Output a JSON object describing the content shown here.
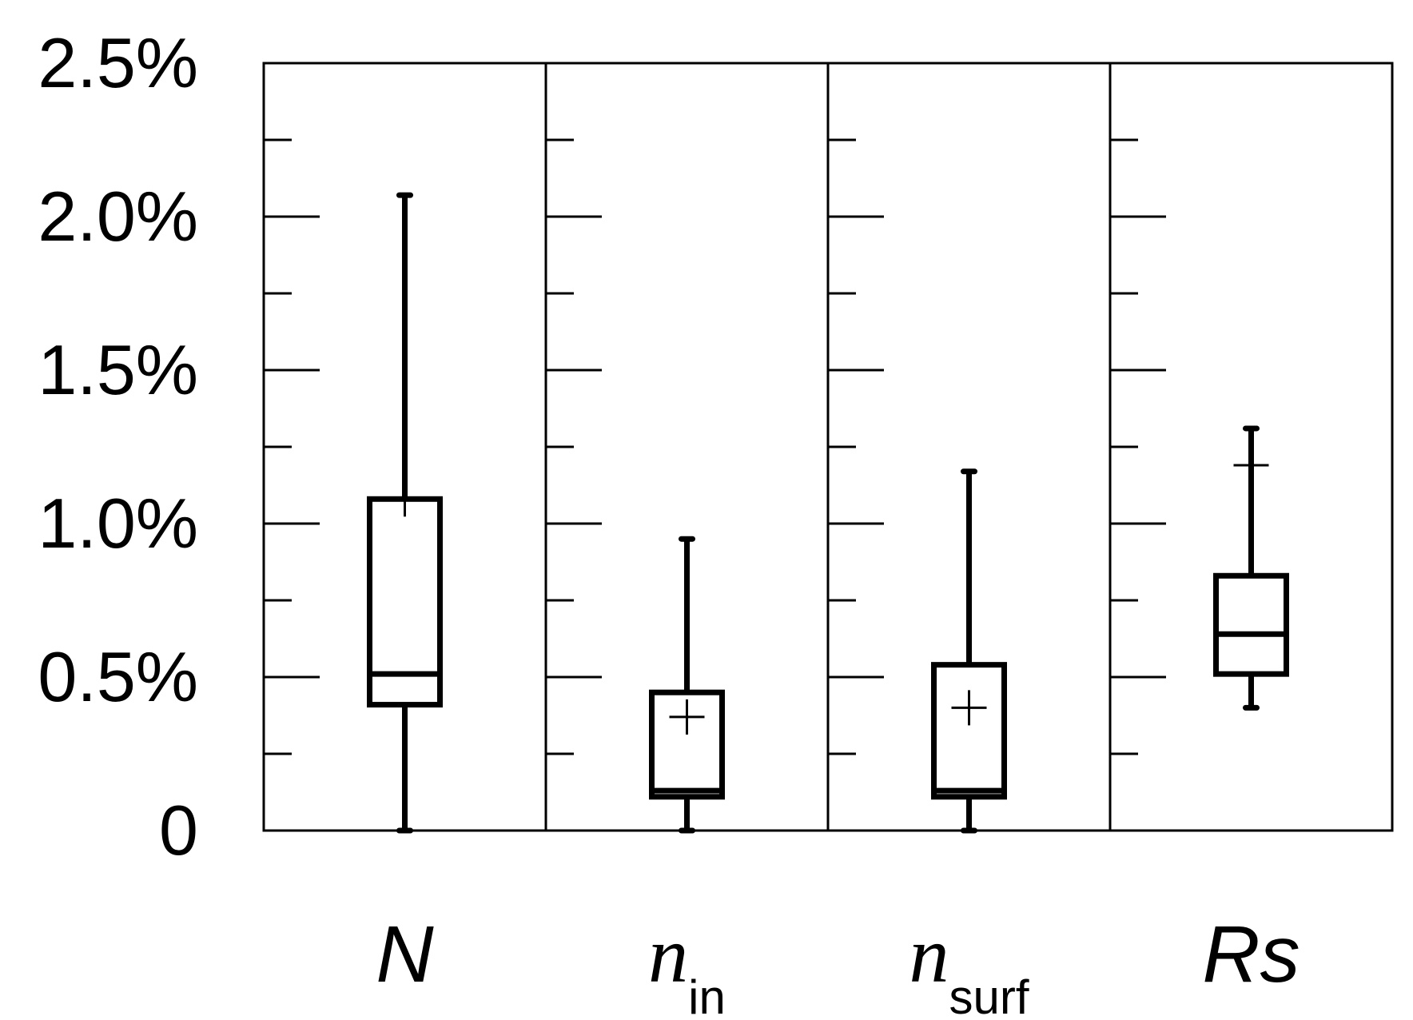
{
  "chart_data": {
    "type": "boxplot",
    "title": "",
    "xlabel": "",
    "ylabel": "",
    "ylim": [
      0,
      2.5
    ],
    "y_ticks": [
      {
        "value": 0,
        "label": "0"
      },
      {
        "value": 0.5,
        "label": "0.5%"
      },
      {
        "value": 1.0,
        "label": "1.0%"
      },
      {
        "value": 1.5,
        "label": "1.5%"
      },
      {
        "value": 2.0,
        "label": "2.0%"
      },
      {
        "value": 2.5,
        "label": "2.5%"
      }
    ],
    "minor_ticks": [
      0.25,
      0.75,
      1.25,
      1.75,
      2.25
    ],
    "grid": false,
    "categories": [
      {
        "main": "N",
        "sub": "",
        "serif": false,
        "whisker_low": 0,
        "q1": 0.41,
        "median": 0.51,
        "q3": 1.08,
        "whisker_high": 2.07,
        "mean": 1.08
      },
      {
        "main": "n",
        "sub": "in",
        "serif": true,
        "whisker_low": 0,
        "q1": 0.11,
        "median": 0.13,
        "q3": 0.45,
        "whisker_high": 0.95,
        "mean": 0.37
      },
      {
        "main": "n",
        "sub": "surf",
        "serif": true,
        "whisker_low": 0,
        "q1": 0.11,
        "median": 0.13,
        "q3": 0.54,
        "whisker_high": 1.17,
        "mean": 0.4
      },
      {
        "main": "Rs",
        "sub": "",
        "serif": false,
        "whisker_low": 0.4,
        "q1": 0.51,
        "median": 0.64,
        "q3": 0.83,
        "whisker_high": 1.31,
        "mean": 1.19
      }
    ]
  }
}
